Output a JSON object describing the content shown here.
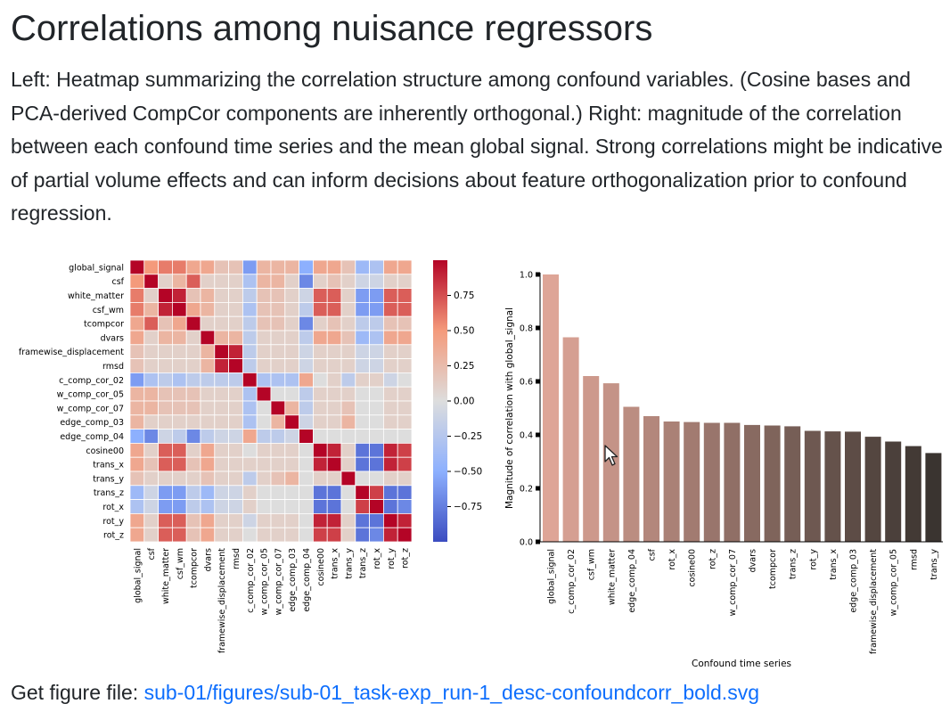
{
  "title": "Correlations among nuisance regressors",
  "description": "Left: Heatmap summarizing the correlation structure among confound variables. (Cosine bases and PCA-derived CompCor components are inherently orthogonal.) Right: magnitude of the correlation between each confound time series and the mean global signal. Strong correlations might be indicative of partial volume effects and can inform decisions about feature orthogonalization prior to confound regression.",
  "footer": {
    "label": "Get figure file: ",
    "link_text": "sub-01/figures/sub-01_task-exp_run-1_desc-confoundcorr_bold.svg"
  },
  "colors": {
    "heatmap_low": "#3b4cc0",
    "heatmap_mid": "#dddddd",
    "heatmap_high": "#b40426",
    "bar_start": "#dea597",
    "bar_end": "#3a3430",
    "link": "#0d6efd"
  },
  "chart_data": [
    {
      "type": "heatmap",
      "variables": [
        "global_signal",
        "csf",
        "white_matter",
        "csf_wm",
        "tcompcor",
        "dvars",
        "framewise_displacement",
        "rmsd",
        "c_comp_cor_02",
        "w_comp_cor_05",
        "w_comp_cor_07",
        "edge_comp_03",
        "edge_comp_04",
        "cosine00",
        "trans_x",
        "trans_y",
        "trans_z",
        "rot_x",
        "rot_y",
        "rot_z"
      ],
      "matrix": [
        [
          1.0,
          0.5,
          0.6,
          0.6,
          0.4,
          0.4,
          0.2,
          0.2,
          -0.6,
          0.3,
          0.3,
          0.3,
          -0.5,
          0.4,
          0.4,
          0.2,
          -0.4,
          -0.3,
          0.4,
          0.4
        ],
        [
          0.5,
          1.0,
          0.1,
          0.3,
          0.7,
          0.1,
          0.1,
          0.1,
          -0.3,
          0.3,
          0.3,
          0.1,
          -0.7,
          0.1,
          0.2,
          0.1,
          -0.1,
          -0.1,
          0.1,
          0.1
        ],
        [
          0.6,
          0.1,
          1.0,
          0.9,
          0.2,
          0.3,
          0.1,
          0.1,
          -0.2,
          0.2,
          0.2,
          0.1,
          -0.1,
          0.7,
          0.7,
          0.1,
          -0.6,
          -0.6,
          0.7,
          0.7
        ],
        [
          0.6,
          0.3,
          0.9,
          1.0,
          0.4,
          0.3,
          0.1,
          0.1,
          -0.3,
          0.2,
          0.2,
          0.1,
          -0.2,
          0.7,
          0.7,
          0.1,
          -0.6,
          -0.6,
          0.7,
          0.7
        ],
        [
          0.4,
          0.7,
          0.2,
          0.4,
          1.0,
          0.1,
          0.1,
          0.1,
          -0.2,
          0.2,
          0.2,
          0.1,
          -0.7,
          0.1,
          0.2,
          0.1,
          -0.2,
          -0.2,
          0.2,
          0.2
        ],
        [
          0.4,
          0.1,
          0.3,
          0.3,
          0.1,
          1.0,
          0.3,
          0.3,
          -0.2,
          0.1,
          0.1,
          0.1,
          -0.2,
          0.4,
          0.4,
          0.2,
          -0.4,
          -0.3,
          0.4,
          0.4
        ],
        [
          0.2,
          0.1,
          0.1,
          0.1,
          0.1,
          0.3,
          1.0,
          0.9,
          -0.2,
          0.1,
          0.1,
          0.1,
          -0.1,
          0.1,
          0.1,
          0.1,
          -0.1,
          -0.1,
          0.1,
          0.1
        ],
        [
          0.2,
          0.1,
          0.1,
          0.1,
          0.1,
          0.3,
          0.9,
          1.0,
          -0.2,
          0.1,
          0.1,
          0.1,
          -0.1,
          0.1,
          0.1,
          0.1,
          -0.1,
          -0.1,
          0.1,
          0.1
        ],
        [
          -0.6,
          -0.3,
          -0.2,
          -0.3,
          -0.2,
          -0.2,
          -0.2,
          -0.2,
          1.0,
          -0.3,
          -0.3,
          -0.3,
          0.4,
          0.0,
          0.1,
          -0.2,
          0.1,
          0.1,
          -0.1,
          0.0
        ],
        [
          0.3,
          0.3,
          0.2,
          0.2,
          0.2,
          0.1,
          0.1,
          0.1,
          -0.3,
          1.0,
          0.0,
          0.0,
          -0.2,
          0.1,
          0.1,
          0.1,
          0.0,
          0.0,
          0.1,
          0.1
        ],
        [
          0.3,
          0.3,
          0.2,
          0.2,
          0.2,
          0.1,
          0.1,
          0.1,
          -0.3,
          0.0,
          1.0,
          0.3,
          -0.2,
          0.1,
          0.1,
          0.2,
          0.0,
          0.0,
          0.1,
          0.1
        ],
        [
          0.3,
          0.1,
          0.1,
          0.1,
          0.1,
          0.1,
          0.1,
          0.1,
          -0.3,
          0.0,
          0.3,
          1.0,
          -0.1,
          0.1,
          0.1,
          0.3,
          0.0,
          0.0,
          0.1,
          0.1
        ],
        [
          -0.5,
          -0.7,
          -0.1,
          -0.2,
          -0.7,
          -0.2,
          -0.1,
          -0.1,
          0.4,
          -0.2,
          -0.2,
          -0.1,
          1.0,
          0.0,
          0.0,
          0.0,
          0.0,
          0.0,
          0.0,
          0.0
        ],
        [
          0.4,
          0.1,
          0.7,
          0.7,
          0.1,
          0.4,
          0.1,
          0.1,
          0.0,
          0.1,
          0.1,
          0.1,
          0.0,
          1.0,
          0.9,
          0.1,
          -0.8,
          -0.8,
          0.9,
          0.8
        ],
        [
          0.4,
          0.2,
          0.7,
          0.7,
          0.2,
          0.4,
          0.1,
          0.1,
          0.1,
          0.1,
          0.1,
          0.1,
          0.0,
          0.9,
          1.0,
          0.1,
          -0.8,
          -0.8,
          0.9,
          0.8
        ],
        [
          0.2,
          0.1,
          0.1,
          0.1,
          0.1,
          0.2,
          0.1,
          0.1,
          -0.2,
          0.1,
          0.2,
          0.3,
          0.0,
          0.1,
          0.1,
          1.0,
          0.0,
          0.0,
          0.1,
          0.1
        ],
        [
          -0.4,
          -0.1,
          -0.6,
          -0.6,
          -0.2,
          -0.4,
          -0.1,
          -0.1,
          0.1,
          0.0,
          0.0,
          0.0,
          0.0,
          -0.8,
          -0.8,
          0.0,
          1.0,
          0.8,
          -0.8,
          -0.8
        ],
        [
          -0.3,
          -0.1,
          -0.6,
          -0.6,
          -0.2,
          -0.3,
          -0.1,
          -0.1,
          0.1,
          0.0,
          0.0,
          0.0,
          0.0,
          -0.8,
          -0.8,
          0.0,
          0.8,
          1.0,
          -0.8,
          -0.7
        ],
        [
          0.4,
          0.1,
          0.7,
          0.7,
          0.2,
          0.4,
          0.1,
          0.1,
          -0.1,
          0.1,
          0.1,
          0.1,
          0.0,
          0.9,
          0.9,
          0.1,
          -0.8,
          -0.8,
          1.0,
          0.9
        ],
        [
          0.4,
          0.1,
          0.7,
          0.7,
          0.2,
          0.4,
          0.1,
          0.1,
          0.0,
          0.1,
          0.1,
          0.1,
          0.0,
          0.8,
          0.8,
          0.1,
          -0.8,
          -0.7,
          0.9,
          1.0
        ]
      ],
      "colorbar_ticks": [
        0.75,
        0.5,
        0.25,
        0.0,
        -0.25,
        -0.5,
        -0.75
      ],
      "colorbar_tick_labels": [
        "0.75",
        "0.50",
        "0.25",
        "0.00",
        "−0.25",
        "−0.50",
        "−0.75"
      ],
      "vmin": -1.0,
      "vmax": 1.0
    },
    {
      "type": "bar",
      "categories": [
        "global_signal",
        "c_comp_cor_02",
        "csf_wm",
        "white_matter",
        "edge_comp_04",
        "csf",
        "rot_x",
        "cosine00",
        "rot_z",
        "w_comp_cor_07",
        "dvars",
        "tcompcor",
        "trans_z",
        "rot_y",
        "trans_x",
        "edge_comp_03",
        "framewise_displacement",
        "w_comp_cor_05",
        "rmsd",
        "trans_y"
      ],
      "values": [
        1.0,
        0.765,
        0.62,
        0.593,
        0.505,
        0.47,
        0.45,
        0.448,
        0.445,
        0.445,
        0.437,
        0.435,
        0.432,
        0.415,
        0.413,
        0.412,
        0.393,
        0.375,
        0.358,
        0.332
      ],
      "ylim": [
        0.0,
        1.0
      ],
      "yticks": [
        "0.0",
        "0.2",
        "0.4",
        "0.6",
        "0.8",
        "1.0"
      ],
      "xlabel": "Confound time series",
      "ylabel": "Magnitude of correlation with global_signal"
    }
  ]
}
